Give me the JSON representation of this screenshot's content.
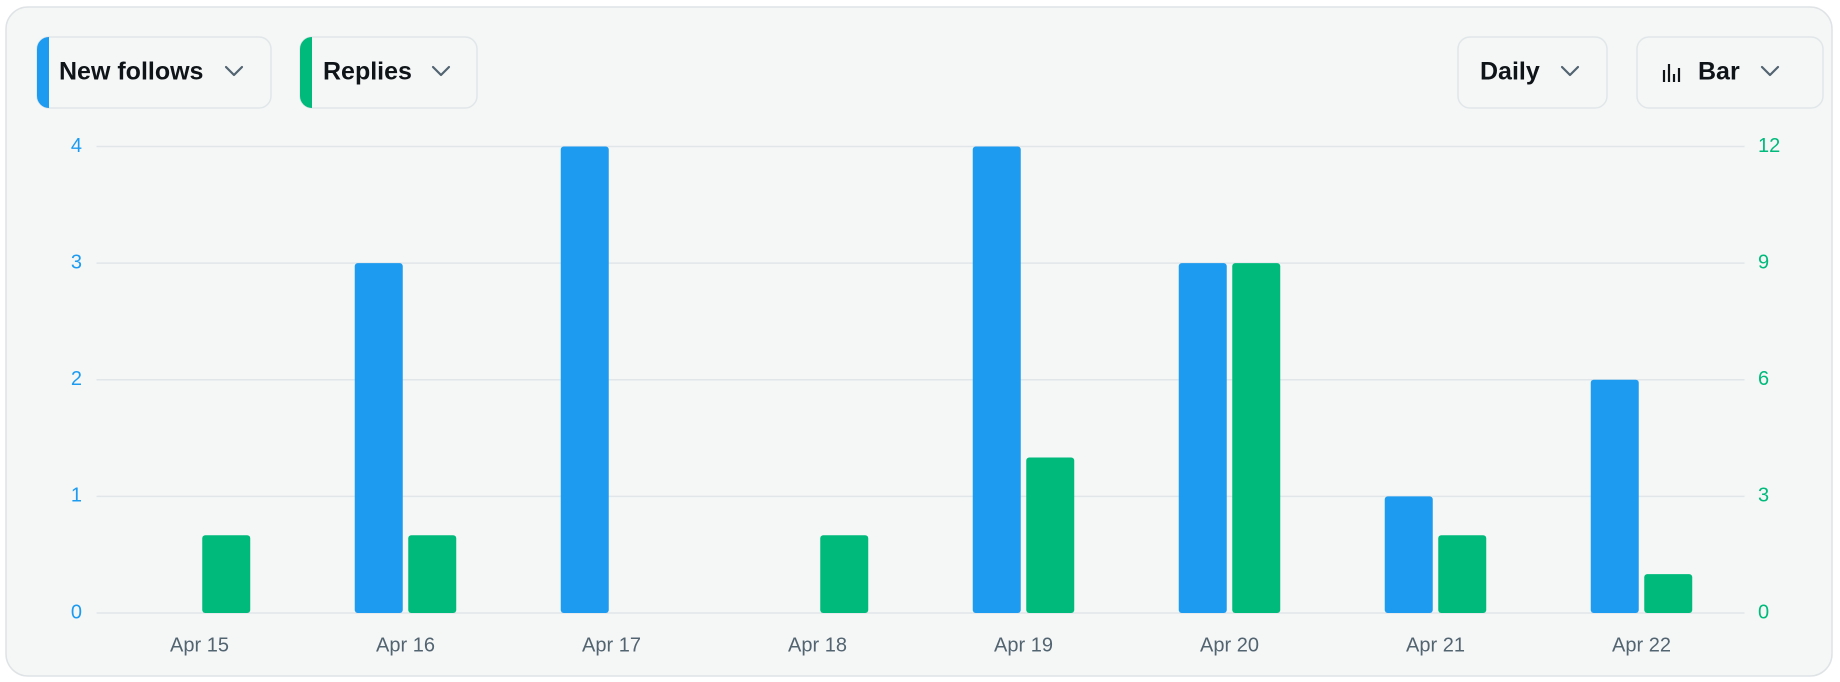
{
  "controls": {
    "interval": "Daily",
    "chart_style": "Bar"
  },
  "chart_data": {
    "type": "bar",
    "categories": [
      "Apr 15",
      "Apr 16",
      "Apr 17",
      "Apr 18",
      "Apr 19",
      "Apr 20",
      "Apr 21",
      "Apr 22"
    ],
    "series": [
      {
        "name": "New follows",
        "color": "#1d9bf0",
        "values": [
          0,
          3,
          4,
          0,
          4,
          3,
          1,
          2
        ]
      },
      {
        "name": "Replies",
        "color": "#00ba7c",
        "values": [
          2,
          2,
          0,
          2,
          4,
          9,
          2,
          1
        ],
        "axis": "y2"
      }
    ],
    "ylim": [
      0,
      4
    ],
    "yticks": [
      0,
      1,
      2,
      3,
      4
    ],
    "y2lim": [
      0,
      12
    ],
    "y2ticks": [
      0,
      3,
      6,
      9,
      12
    ],
    "grid": true
  }
}
